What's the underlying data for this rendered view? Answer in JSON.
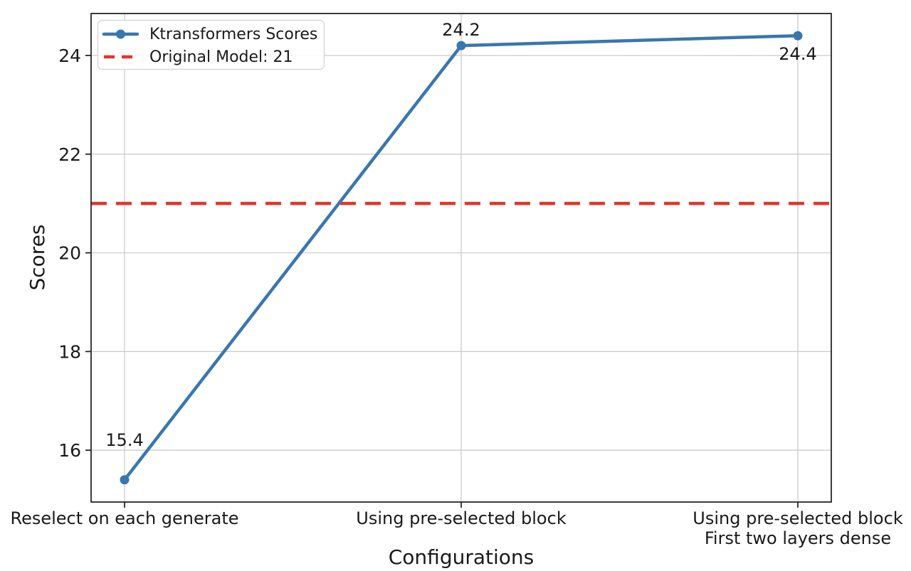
{
  "chart_data": {
    "type": "line",
    "title": "",
    "xlabel": "Configurations",
    "ylabel": "Scores",
    "categories": [
      "Reselect on each generate",
      "Using pre-selected block",
      "Using pre-selected block\nFirst two layers dense"
    ],
    "series": [
      {
        "name": "Ktransformers Scores",
        "values": [
          15.4,
          24.2,
          24.4
        ],
        "color": "#3a76af",
        "marker": "circle",
        "line_style": "solid"
      }
    ],
    "reference_line": {
      "label": "Original Model: 21",
      "value": 21,
      "color": "#e5352b",
      "line_style": "dashed"
    },
    "annotations": [
      {
        "text": "15.4",
        "point_index": 0,
        "position": "above-far"
      },
      {
        "text": "24.2",
        "point_index": 1,
        "position": "above"
      },
      {
        "text": "24.4",
        "point_index": 2,
        "position": "below"
      }
    ],
    "yticks": [
      "16",
      "18",
      "20",
      "22",
      "24"
    ],
    "ylim": [
      14.95,
      24.85
    ],
    "grid": true,
    "legend_position": "upper-left",
    "legend_entries": [
      "Ktransformers Scores",
      "Original Model: 21"
    ]
  },
  "colors": {
    "series_blue": "#3a76af",
    "reference_red": "#e5352b",
    "grid": "#c9c9c9",
    "spine": "#262626",
    "text": "#1a1a1a",
    "legend_border": "#d8d8d8",
    "background": "#ffffff"
  }
}
